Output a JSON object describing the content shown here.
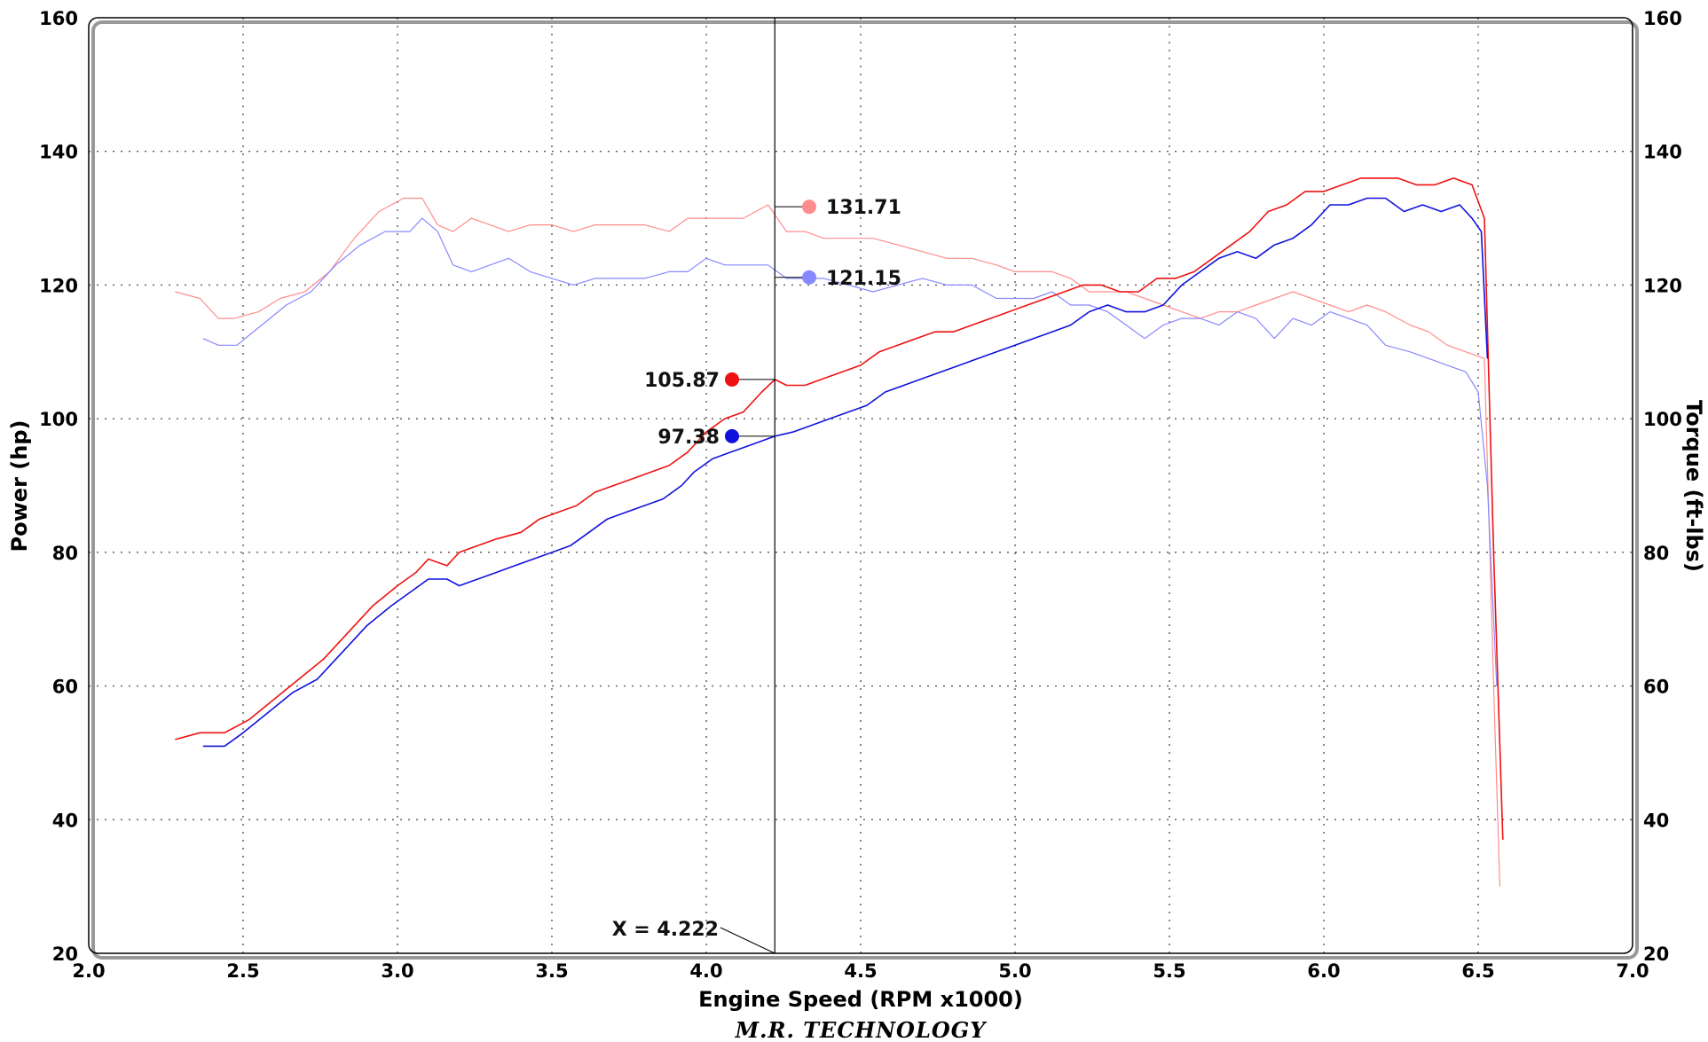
{
  "chart_data": {
    "type": "line",
    "xlabel": "Engine Speed (RPM x1000)",
    "ylabel_left": "Power (hp)",
    "ylabel_right": "Torque (ft-lbs)",
    "xlim": [
      2.0,
      7.0
    ],
    "ylim": [
      20,
      160
    ],
    "x_ticks": [
      "2.0",
      "2.5",
      "3.0",
      "3.5",
      "4.0",
      "4.5",
      "5.0",
      "5.5",
      "6.0",
      "6.5",
      "7.0"
    ],
    "y_ticks": [
      "20",
      "40",
      "60",
      "80",
      "100",
      "120",
      "140",
      "160"
    ],
    "grid": true,
    "cursor": {
      "x": 4.222,
      "label": "X = 4.222"
    },
    "series": [
      {
        "name": "",
        "kind": "torque",
        "color": "#ff8c8c",
        "marker_value": "131.71",
        "x": [
          2.28,
          2.36,
          2.42,
          2.47,
          2.55,
          2.62,
          2.7,
          2.78,
          2.86,
          2.94,
          3.02,
          3.08,
          3.13,
          3.18,
          3.24,
          3.3,
          3.36,
          3.43,
          3.5,
          3.57,
          3.64,
          3.72,
          3.8,
          3.88,
          3.94,
          4.0,
          4.06,
          4.12,
          4.2,
          4.26,
          4.32,
          4.38,
          4.46,
          4.54,
          4.62,
          4.7,
          4.78,
          4.86,
          4.94,
          5.0,
          5.06,
          5.12,
          5.18,
          5.24,
          5.3,
          5.36,
          5.42,
          5.48,
          5.54,
          5.6,
          5.66,
          5.72,
          5.78,
          5.84,
          5.9,
          5.96,
          6.02,
          6.08,
          6.14,
          6.2,
          6.28,
          6.34,
          6.4,
          6.46,
          6.52,
          6.55,
          6.57
        ],
        "y": [
          119,
          118,
          115,
          115,
          116,
          118,
          119,
          122,
          127,
          131,
          133,
          133,
          129,
          128,
          130,
          129,
          128,
          129,
          129,
          128,
          129,
          129,
          129,
          128,
          130,
          130,
          130,
          130,
          132,
          128,
          128,
          127,
          127,
          127,
          126,
          125,
          124,
          124,
          123,
          122,
          122,
          122,
          121,
          119,
          119,
          119,
          118,
          117,
          116,
          115,
          116,
          116,
          117,
          118,
          119,
          118,
          117,
          116,
          117,
          116,
          114,
          113,
          111,
          110,
          109,
          60,
          30
        ]
      },
      {
        "name": "",
        "kind": "torque",
        "color": "#8888ff",
        "marker_value": "121.15",
        "x": [
          2.37,
          2.42,
          2.48,
          2.56,
          2.64,
          2.72,
          2.8,
          2.88,
          2.96,
          3.04,
          3.08,
          3.13,
          3.18,
          3.24,
          3.3,
          3.36,
          3.43,
          3.5,
          3.57,
          3.64,
          3.72,
          3.8,
          3.88,
          3.94,
          4.0,
          4.06,
          4.12,
          4.2,
          4.26,
          4.32,
          4.38,
          4.46,
          4.54,
          4.62,
          4.7,
          4.78,
          4.86,
          4.94,
          5.0,
          5.06,
          5.12,
          5.18,
          5.24,
          5.3,
          5.36,
          5.42,
          5.48,
          5.54,
          5.6,
          5.66,
          5.72,
          5.78,
          5.84,
          5.9,
          5.96,
          6.02,
          6.08,
          6.14,
          6.2,
          6.28,
          6.34,
          6.4,
          6.46,
          6.5,
          6.53,
          6.56
        ],
        "y": [
          112,
          111,
          111,
          114,
          117,
          119,
          123,
          126,
          128,
          128,
          130,
          128,
          123,
          122,
          123,
          124,
          122,
          121,
          120,
          121,
          121,
          121,
          122,
          122,
          124,
          123,
          123,
          123,
          121,
          121,
          121,
          120,
          119,
          120,
          121,
          120,
          120,
          118,
          118,
          118,
          119,
          117,
          117,
          116,
          114,
          112,
          114,
          115,
          115,
          114,
          116,
          115,
          112,
          115,
          114,
          116,
          115,
          114,
          111,
          110,
          109,
          108,
          107,
          104,
          90,
          60
        ]
      },
      {
        "name": "",
        "kind": "power",
        "color": "#ee1111",
        "marker_value": "105.87",
        "x": [
          2.28,
          2.36,
          2.44,
          2.52,
          2.6,
          2.68,
          2.76,
          2.84,
          2.92,
          3.0,
          3.06,
          3.1,
          3.16,
          3.2,
          3.26,
          3.32,
          3.4,
          3.46,
          3.52,
          3.58,
          3.64,
          3.7,
          3.76,
          3.82,
          3.88,
          3.94,
          4.0,
          4.06,
          4.12,
          4.18,
          4.222,
          4.26,
          4.32,
          4.38,
          4.44,
          4.5,
          4.56,
          4.62,
          4.68,
          4.74,
          4.8,
          4.86,
          4.92,
          4.98,
          5.04,
          5.1,
          5.16,
          5.22,
          5.28,
          5.34,
          5.4,
          5.46,
          5.52,
          5.58,
          5.64,
          5.7,
          5.76,
          5.82,
          5.88,
          5.94,
          6.0,
          6.06,
          6.12,
          6.18,
          6.24,
          6.3,
          6.36,
          6.42,
          6.48,
          6.52,
          6.55,
          6.58
        ],
        "y": [
          52,
          53,
          53,
          55,
          58,
          61,
          64,
          68,
          72,
          75,
          77,
          79,
          78,
          80,
          81,
          82,
          83,
          85,
          86,
          87,
          89,
          90,
          91,
          92,
          93,
          95,
          98,
          100,
          101,
          104,
          105.87,
          105,
          105,
          106,
          107,
          108,
          110,
          111,
          112,
          113,
          113,
          114,
          115,
          116,
          117,
          118,
          119,
          120,
          120,
          119,
          119,
          121,
          121,
          122,
          124,
          126,
          128,
          131,
          132,
          134,
          134,
          135,
          136,
          136,
          136,
          135,
          135,
          136,
          135,
          130,
          80,
          37
        ]
      },
      {
        "name": "",
        "kind": "power",
        "color": "#1111dd",
        "marker_value": "97.38",
        "x": [
          2.37,
          2.44,
          2.5,
          2.58,
          2.66,
          2.74,
          2.82,
          2.9,
          2.98,
          3.04,
          3.1,
          3.16,
          3.2,
          3.26,
          3.32,
          3.38,
          3.44,
          3.5,
          3.56,
          3.62,
          3.68,
          3.74,
          3.8,
          3.86,
          3.92,
          3.96,
          4.02,
          4.08,
          4.14,
          4.222,
          4.28,
          4.34,
          4.4,
          4.46,
          4.52,
          4.58,
          4.64,
          4.7,
          4.76,
          4.82,
          4.88,
          4.94,
          5.0,
          5.06,
          5.12,
          5.18,
          5.24,
          5.3,
          5.36,
          5.42,
          5.48,
          5.54,
          5.6,
          5.66,
          5.72,
          5.78,
          5.84,
          5.9,
          5.96,
          6.02,
          6.08,
          6.14,
          6.2,
          6.26,
          6.32,
          6.38,
          6.44,
          6.48,
          6.51,
          6.53
        ],
        "y": [
          51,
          51,
          53,
          56,
          59,
          61,
          65,
          69,
          72,
          74,
          76,
          76,
          75,
          76,
          77,
          78,
          79,
          80,
          81,
          83,
          85,
          86,
          87,
          88,
          90,
          92,
          94,
          95,
          96,
          97.38,
          98,
          99,
          100,
          101,
          102,
          104,
          105,
          106,
          107,
          108,
          109,
          110,
          111,
          112,
          113,
          114,
          116,
          117,
          116,
          116,
          117,
          120,
          122,
          124,
          125,
          124,
          126,
          127,
          129,
          132,
          132,
          133,
          133,
          131,
          132,
          131,
          132,
          130,
          128,
          109
        ]
      }
    ]
  },
  "footer": "M.R. TECHNOLOGY"
}
